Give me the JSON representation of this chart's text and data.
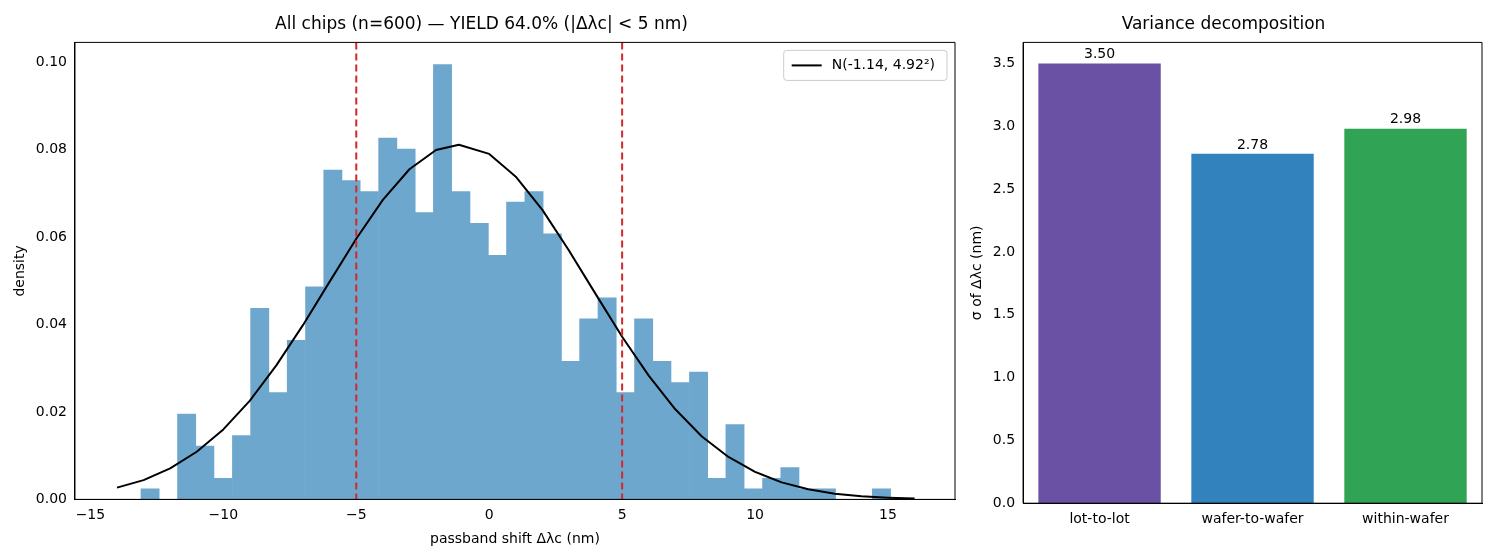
{
  "chart_data": [
    {
      "type": "histogram",
      "title": "All chips (n=600) — YIELD 64.0% (|Δλc| < 5 nm)",
      "xlabel": "passband shift Δλc (nm)",
      "ylabel": "density",
      "bins": [
        -13.1,
        -12.41,
        -11.72,
        -11.04,
        -10.35,
        -9.66,
        -8.97,
        -8.29,
        -7.6,
        -6.91,
        -6.22,
        -5.54,
        -4.85,
        -4.16,
        -3.47,
        -2.78,
        -2.1,
        -1.41,
        -0.72,
        -0.03,
        0.65,
        1.34,
        2.03,
        2.72,
        3.4,
        4.09,
        4.78,
        5.47,
        6.15,
        6.84,
        7.53,
        8.22,
        8.9,
        9.59,
        10.28,
        10.97,
        11.65,
        12.34,
        13.03,
        13.72,
        14.41,
        15.1
      ],
      "series": [
        {
          "type": "histogram",
          "color": "#6da7ce",
          "values": [
            0.0024,
            0,
            0.0195,
            0.0122,
            0.0048,
            0.0146,
            0.0437,
            0.0244,
            0.0364,
            0.0486,
            0.0753,
            0.0729,
            0.0704,
            0.0826,
            0.0801,
            0.0656,
            0.0994,
            0.0704,
            0.0631,
            0.0558,
            0.068,
            0.0704,
            0.0607,
            0.0316,
            0.0413,
            0.0461,
            0.0244,
            0.0413,
            0.0316,
            0.0267,
            0.0291,
            0.0048,
            0.0171,
            0.0024,
            0.0048,
            0.0073,
            0.0024,
            0.0024,
            0,
            0,
            0.0024
          ]
        },
        {
          "type": "line",
          "name": "N(-1.14, 4.92²)",
          "color": "#000000",
          "x": [
            -14,
            -13,
            -12,
            -11,
            -10,
            -9,
            -8,
            -7,
            -6,
            -5,
            -4,
            -3,
            -2,
            -1.14,
            0,
            1,
            2,
            3,
            4,
            5,
            6,
            7,
            8,
            9,
            10,
            11,
            12,
            13,
            14,
            15,
            16
          ],
          "values": [
            0.0027,
            0.0044,
            0.0071,
            0.0109,
            0.016,
            0.0226,
            0.0307,
            0.0399,
            0.0498,
            0.0596,
            0.0685,
            0.0755,
            0.0799,
            0.0811,
            0.079,
            0.0738,
            0.0662,
            0.0569,
            0.047,
            0.0372,
            0.0283,
            0.0206,
            0.0144,
            0.0097,
            0.0063,
            0.0039,
            0.0023,
            0.0013,
            0.0007,
            0.0004,
            0.0002
          ]
        }
      ],
      "ref_lines": [
        {
          "axis": "x",
          "value": -5,
          "color": "#d62728",
          "line_style": "dashed"
        },
        {
          "axis": "x",
          "value": 5,
          "color": "#d62728",
          "line_style": "dashed"
        }
      ],
      "xlim": [
        -15.58,
        17.52
      ],
      "xticks": [
        {
          "value": -15,
          "label": "−15"
        },
        {
          "value": -10,
          "label": "−10"
        },
        {
          "value": -5,
          "label": "−5"
        },
        {
          "value": 0,
          "label": "0"
        },
        {
          "value": 5,
          "label": "5"
        },
        {
          "value": 10,
          "label": "10"
        },
        {
          "value": 15,
          "label": "15"
        }
      ],
      "ylim": [
        0,
        0.1045
      ],
      "yticks": [
        {
          "value": 0,
          "label": "0.00"
        },
        {
          "value": 0.02,
          "label": "0.02"
        },
        {
          "value": 0.04,
          "label": "0.04"
        },
        {
          "value": 0.06,
          "label": "0.06"
        },
        {
          "value": 0.08,
          "label": "0.08"
        },
        {
          "value": 0.1,
          "label": "0.10"
        }
      ],
      "legend": "top right",
      "grid": false
    },
    {
      "type": "bar",
      "title": "Variance decomposition",
      "ylabel": "σ of Δλc (nm)",
      "categories": [
        "lot-to-lot",
        "wafer-to-wafer",
        "within-wafer"
      ],
      "values": [
        3.5,
        2.78,
        2.98
      ],
      "colors": [
        "#6a51a3",
        "#3182bd",
        "#31a354"
      ],
      "value_labels": [
        "3.50",
        "2.78",
        "2.98"
      ],
      "ylim": [
        0,
        3.667
      ],
      "yticks": [
        {
          "value": 0,
          "label": "0.0"
        },
        {
          "value": 0.5,
          "label": "0.5"
        },
        {
          "value": 1,
          "label": "1.0"
        },
        {
          "value": 1.5,
          "label": "1.5"
        },
        {
          "value": 2,
          "label": "2.0"
        },
        {
          "value": 2.5,
          "label": "2.5"
        },
        {
          "value": 3,
          "label": "3.0"
        },
        {
          "value": 3.5,
          "label": "3.5"
        }
      ],
      "grid": false
    }
  ]
}
